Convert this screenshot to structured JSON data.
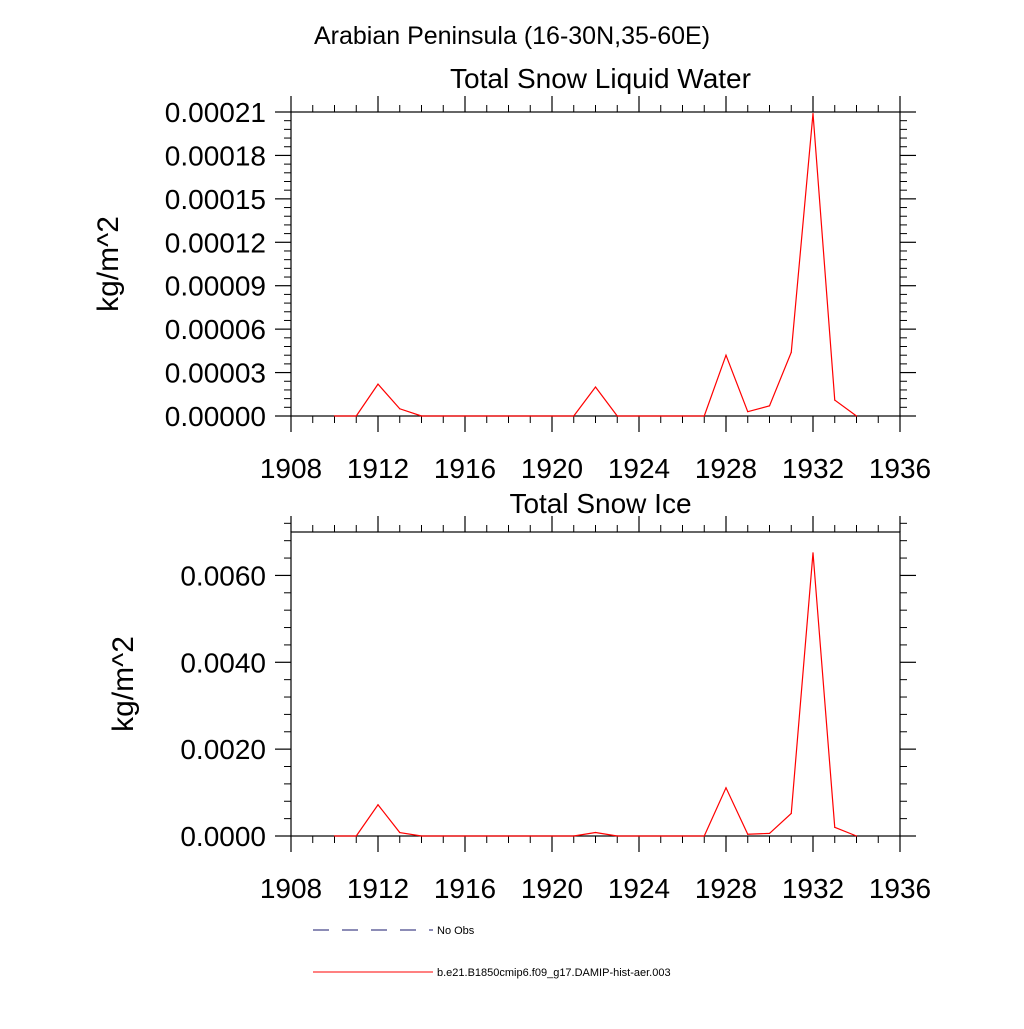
{
  "figure": {
    "title": "Arabian Peninsula (16-30N,35-60E)"
  },
  "legend": {
    "placement": "bottom",
    "entries": [
      {
        "label": "No Obs",
        "color": "#1a1a6e",
        "style": "dashed"
      },
      {
        "label": "b.e21.B1850cmip6.f09_g17.DAMIP-hist-aer.003",
        "color": "#ff0000",
        "style": "solid"
      }
    ]
  },
  "chart_data": [
    {
      "type": "line",
      "title": "Total Snow Liquid Water",
      "xlabel": "",
      "ylabel": "kg/m^2",
      "xlim": [
        1908,
        1936
      ],
      "ylim": [
        0,
        0.00021
      ],
      "xticks": [
        1908,
        1912,
        1916,
        1920,
        1924,
        1928,
        1932,
        1936
      ],
      "xtick_labels": [
        "1908",
        "1912",
        "1916",
        "1920",
        "1924",
        "1928",
        "1932",
        "1936"
      ],
      "yticks": [
        0,
        3e-05,
        6e-05,
        9e-05,
        0.00012,
        0.00015,
        0.00018,
        0.00021
      ],
      "ytick_labels": [
        "0.00000",
        "0.00003",
        "0.00006",
        "0.00009",
        "0.00012",
        "0.00015",
        "0.00018",
        "0.00021"
      ],
      "grid": false,
      "x": [
        1910,
        1911,
        1912,
        1913,
        1914,
        1915,
        1916,
        1917,
        1918,
        1919,
        1920,
        1921,
        1922,
        1923,
        1924,
        1925,
        1926,
        1927,
        1928,
        1929,
        1930,
        1931,
        1932,
        1933,
        1934
      ],
      "series": [
        {
          "name": "b.e21.B1850cmip6.f09_g17.DAMIP-hist-aer.003",
          "color": "#ff0000",
          "values": [
            0,
            0,
            2.2e-05,
            5e-06,
            0,
            0,
            0,
            0,
            0,
            0,
            0,
            0,
            2e-05,
            0,
            0,
            0,
            0,
            0,
            4.2e-05,
            3e-06,
            7e-06,
            4.4e-05,
            0.000209,
            1.1e-05,
            0
          ]
        }
      ]
    },
    {
      "type": "line",
      "title": "Total Snow Ice",
      "xlabel": "",
      "ylabel": "kg/m^2",
      "xlim": [
        1908,
        1936
      ],
      "ylim": [
        0,
        0.007
      ],
      "xticks": [
        1908,
        1912,
        1916,
        1920,
        1924,
        1928,
        1932,
        1936
      ],
      "xtick_labels": [
        "1908",
        "1912",
        "1916",
        "1920",
        "1924",
        "1928",
        "1932",
        "1936"
      ],
      "yticks": [
        0,
        0.002,
        0.004,
        0.006
      ],
      "ytick_labels": [
        "0.0000",
        "0.0020",
        "0.0040",
        "0.0060"
      ],
      "grid": false,
      "x": [
        1910,
        1911,
        1912,
        1913,
        1914,
        1915,
        1916,
        1917,
        1918,
        1919,
        1920,
        1921,
        1922,
        1923,
        1924,
        1925,
        1926,
        1927,
        1928,
        1929,
        1930,
        1931,
        1932,
        1933,
        1934
      ],
      "series": [
        {
          "name": "b.e21.B1850cmip6.f09_g17.DAMIP-hist-aer.003",
          "color": "#ff0000",
          "values": [
            0,
            0,
            0.00072,
            8e-05,
            0,
            0,
            0,
            0,
            0,
            0,
            0,
            0,
            8e-05,
            0,
            0,
            0,
            0,
            0,
            0.00111,
            4e-05,
            6e-05,
            0.00052,
            0.00652,
            0.0002,
            0
          ]
        }
      ]
    }
  ]
}
